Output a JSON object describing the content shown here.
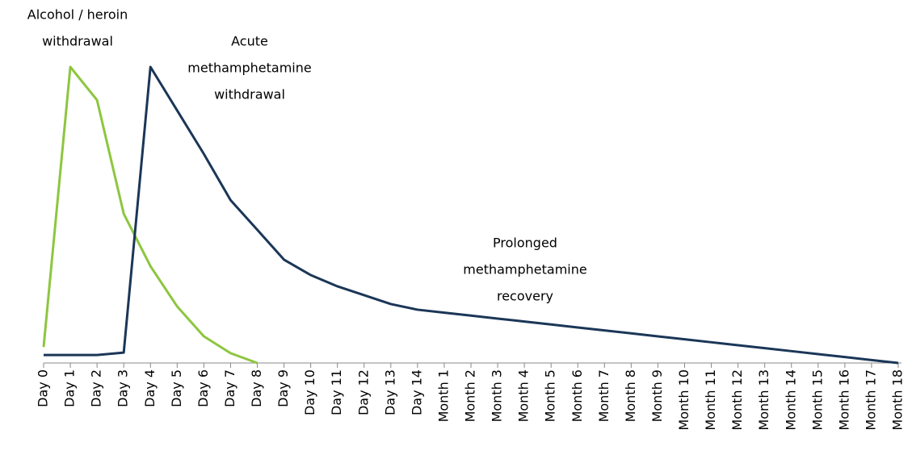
{
  "chart_data": {
    "type": "line",
    "categories": [
      "Day 0",
      "Day 1",
      "Day 2",
      "Day 3",
      "Day 4",
      "Day 5",
      "Day 6",
      "Day 7",
      "Day 8",
      "Day 9",
      "Day 10",
      "Day 11",
      "Day 12",
      "Day 13",
      "Day 14",
      "Month 1",
      "Month 2",
      "Month 3",
      "Month 4",
      "Month 5",
      "Month 6",
      "Month 7",
      "Month 8",
      "Month 9",
      "Month 10",
      "Month 11",
      "Month 12",
      "Month 13",
      "Month 14",
      "Month 15",
      "Month 16",
      "Month 17",
      "Month 18"
    ],
    "series": [
      {
        "color": "#8dc63f",
        "values": [
          5.4,
          100,
          88.8,
          50.4,
          32.7,
          19.1,
          9,
          3.3,
          0,
          null,
          null,
          null,
          null,
          null,
          null,
          null,
          null,
          null,
          null,
          null,
          null,
          null,
          null,
          null,
          null,
          null,
          null,
          null,
          null,
          null,
          null,
          null,
          null
        ]
      },
      {
        "color": "#1b3657",
        "values": [
          2.7,
          2.7,
          2.7,
          3.5,
          100,
          85.3,
          70.6,
          55,
          45,
          34.9,
          29.7,
          25.9,
          22.9,
          19.9,
          18,
          17,
          16,
          15,
          14,
          13,
          12,
          11,
          10,
          9,
          8,
          7,
          6,
          5,
          4,
          3,
          2,
          1,
          0
        ]
      }
    ],
    "ylim": [
      0,
      100
    ],
    "annotations": [
      [
        "Alcohol / heroin",
        "withdrawal"
      ],
      [
        "Acute",
        "methamphetamine",
        "withdrawal"
      ],
      [
        "Prolonged",
        "methamphetamine",
        "recovery"
      ]
    ]
  }
}
